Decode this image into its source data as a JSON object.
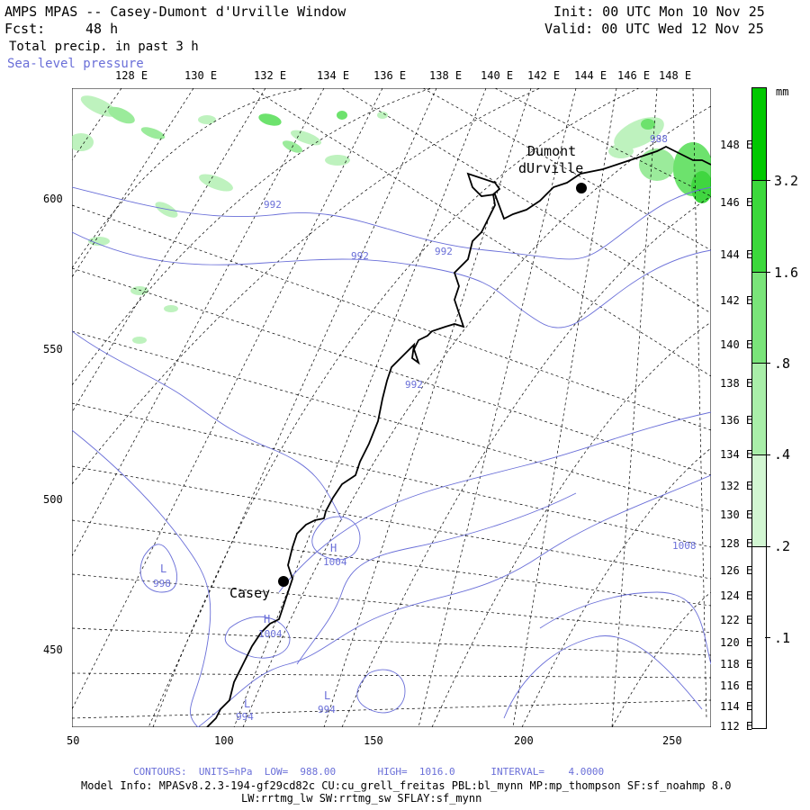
{
  "header": {
    "title": "AMPS MPAS -- Casey-Dumont d'Urville Window",
    "forecast_label": "Fcst:",
    "forecast_value": "48 h",
    "field_label": "Total precip. in past 3 h",
    "overlay_label": "Sea-level pressure",
    "init_text": "Init: 00 UTC Mon 10 Nov 25",
    "valid_text": "Valid: 00 UTC Wed 12 Nov 25"
  },
  "top_lon_labels": [
    "128 E",
    "130 E",
    "132 E",
    "134 E",
    "136 E",
    "138 E",
    "140 E",
    "142 E",
    "144 E",
    "146 E",
    "148 E"
  ],
  "right_lon_labels": [
    "148 E",
    "146 E",
    "144 E",
    "142 E",
    "140 E",
    "138 E",
    "136 E",
    "134 E",
    "132 E",
    "130 E",
    "128 E",
    "126 E",
    "124 E",
    "122 E",
    "120 E",
    "118 E",
    "116 E",
    "114 E",
    "112 E"
  ],
  "x_axis_labels": [
    "50",
    "100",
    "150",
    "200",
    "250"
  ],
  "y_axis_labels": [
    "600",
    "550",
    "500",
    "450"
  ],
  "colorbar": {
    "unit": "mm",
    "labels": [
      "3.2",
      "1.6",
      ".8",
      ".4",
      ".2",
      ".1"
    ],
    "colors": [
      "#00c800",
      "#3cd83c",
      "#7ae47a",
      "#a9eea9",
      "#d2f6d2",
      "#ecfbec"
    ]
  },
  "stations": [
    {
      "name_line1": "Dumont",
      "name_line2": "dUrville"
    },
    {
      "name_line1": "Casey"
    }
  ],
  "pressure_labels": [
    "992",
    "992",
    "992",
    "992",
    "988",
    "1004",
    "1004",
    "1008",
    "998",
    "994",
    "994"
  ],
  "high_low_markers": [
    "H",
    "H",
    "L",
    "L",
    "L"
  ],
  "colors": {
    "contour": "#6a6fd8",
    "precip": "#5fdc5f",
    "coast": "#000000",
    "grid": "#000000"
  },
  "footer": {
    "contours": "CONTOURS:  UNITS=hPa  LOW=  988.00       HIGH=  1016.0      INTERVAL=    4.0000",
    "model_info": "Model Info: MPASv8.2.3-194-gf29cd82c CU:cu_grell_freitas PBL:bl_mynn MP:mp_thompson SF:sf_noahmp 8.0",
    "model_info2": "LW:rrtmg_lw SW:rrtmg_sw SFLAY:sf_mynn"
  }
}
